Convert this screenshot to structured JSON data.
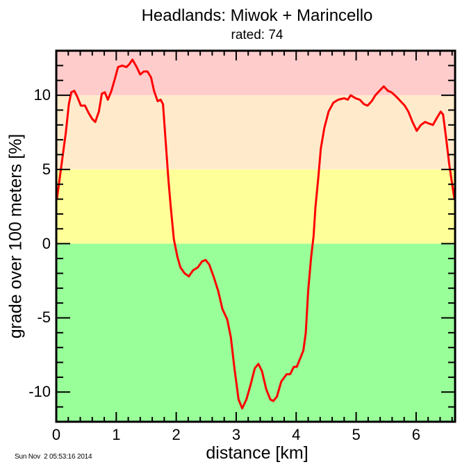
{
  "chart_data": {
    "type": "line",
    "title": "Headlands: Miwok + Marincello",
    "subtitle": "rated: 74",
    "xlabel": "distance [km]",
    "ylabel": "grade over 100 meters [%]",
    "xlim": [
      0,
      6.65
    ],
    "ylim": [
      -12,
      13
    ],
    "x_ticks": [
      0,
      1,
      2,
      3,
      4,
      5,
      6
    ],
    "y_ticks": [
      -10,
      -5,
      0,
      5,
      10
    ],
    "x_tick_labels": [
      "0",
      "1",
      "2",
      "3",
      "4",
      "5",
      "6"
    ],
    "y_tick_labels": [
      "-10",
      "-5",
      "0",
      "5",
      "10"
    ],
    "grid": false,
    "legend": null,
    "background_bands": [
      {
        "from": 10,
        "to": 13,
        "color": "#ffcccc"
      },
      {
        "from": 5,
        "to": 10,
        "color": "#ffebcc"
      },
      {
        "from": 0,
        "to": 5,
        "color": "#ffff99"
      },
      {
        "from": -12,
        "to": 0,
        "color": "#99ff99"
      }
    ],
    "series": [
      {
        "name": "grade",
        "color": "#ff0000",
        "x": [
          0.01,
          0.06,
          0.1,
          0.16,
          0.21,
          0.25,
          0.3,
          0.35,
          0.41,
          0.48,
          0.54,
          0.6,
          0.65,
          0.71,
          0.76,
          0.81,
          0.86,
          0.92,
          0.97,
          1.03,
          1.1,
          1.17,
          1.22,
          1.27,
          1.34,
          1.4,
          1.46,
          1.52,
          1.58,
          1.63,
          1.69,
          1.74,
          1.78,
          1.82,
          1.87,
          1.91,
          1.96,
          2.02,
          2.07,
          2.14,
          2.21,
          2.28,
          2.36,
          2.43,
          2.49,
          2.55,
          2.63,
          2.7,
          2.77,
          2.85,
          2.91,
          2.97,
          3.04,
          3.1,
          3.17,
          3.24,
          3.31,
          3.37,
          3.43,
          3.5,
          3.57,
          3.62,
          3.68,
          3.75,
          3.84,
          3.9,
          3.96,
          4.01,
          4.07,
          4.12,
          4.16,
          4.2,
          4.25,
          4.29,
          4.32,
          4.37,
          4.41,
          4.47,
          4.54,
          4.62,
          4.7,
          4.8,
          4.86,
          4.91,
          4.99,
          5.06,
          5.13,
          5.19,
          5.26,
          5.32,
          5.39,
          5.46,
          5.53,
          5.59,
          5.67,
          5.74,
          5.81,
          5.87,
          5.94,
          6.01,
          6.08,
          6.15,
          6.21,
          6.28,
          6.35,
          6.41,
          6.45,
          6.5,
          6.55,
          6.59,
          6.64
        ],
        "y": [
          3.0,
          4.5,
          5.7,
          7.5,
          9.4,
          10.2,
          10.3,
          9.9,
          9.3,
          9.3,
          8.8,
          8.4,
          8.2,
          8.9,
          10.1,
          10.2,
          9.7,
          10.3,
          11.0,
          11.9,
          12.0,
          11.9,
          12.1,
          12.4,
          11.9,
          11.4,
          11.6,
          11.6,
          11.2,
          10.3,
          9.6,
          9.7,
          9.4,
          7.1,
          4.3,
          2.4,
          0.3,
          -0.9,
          -1.6,
          -2.0,
          -2.2,
          -1.8,
          -1.6,
          -1.2,
          -1.1,
          -1.4,
          -2.3,
          -3.2,
          -4.4,
          -5.1,
          -6.3,
          -8.4,
          -10.5,
          -11.1,
          -10.5,
          -9.5,
          -8.4,
          -8.1,
          -8.6,
          -9.8,
          -10.5,
          -10.6,
          -10.3,
          -9.3,
          -8.8,
          -8.8,
          -8.3,
          -8.3,
          -7.7,
          -7.2,
          -6.0,
          -3.2,
          -0.9,
          0.5,
          2.4,
          4.5,
          6.4,
          7.8,
          8.9,
          9.5,
          9.7,
          9.8,
          9.7,
          10.0,
          9.8,
          9.7,
          9.4,
          9.3,
          9.6,
          10.0,
          10.3,
          10.6,
          10.3,
          10.2,
          9.9,
          9.6,
          9.3,
          8.9,
          8.2,
          7.6,
          8.0,
          8.2,
          8.1,
          8.0,
          8.5,
          8.9,
          8.7,
          7.1,
          5.4,
          4.3,
          3.0
        ]
      }
    ]
  },
  "footer": {
    "timestamp": "Sun Nov  2 05:53:16 2014"
  }
}
